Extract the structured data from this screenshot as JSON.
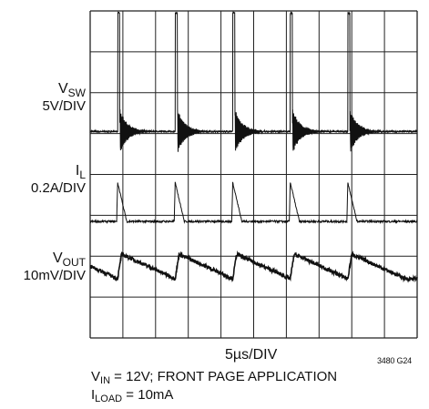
{
  "chart_data": {
    "type": "line",
    "grid": true,
    "divisions": {
      "x": 10,
      "y": 8
    },
    "xlabel": "5µs/DIV",
    "figure_id": "3480 G24",
    "time_per_div_us": 5,
    "switching_period_us": 8.8,
    "series": [
      {
        "name_main": "V",
        "name_sub": "SW",
        "scale": "5V/DIV",
        "waveform": "switch-node pulses with decaying ringing",
        "pulse_times_us": [
          4.2,
          13.0,
          21.8,
          30.6,
          39.4
        ],
        "baseline_div": 5.05,
        "pulse_peak_div": 7.95,
        "ring_amplitude_div": 0.55
      },
      {
        "name_main": "I",
        "name_sub": "L",
        "scale": "0.2A/DIV",
        "waveform": "inductor current spikes",
        "spike_times_us": [
          4.2,
          13.0,
          21.8,
          30.6,
          39.4
        ],
        "baseline_div": 2.85,
        "spike_peak_div": 3.8
      },
      {
        "name_main": "V",
        "name_sub": "OUT",
        "scale": "10mV/DIV",
        "waveform": "sawtooth ripple",
        "step_times_us": [
          4.2,
          13.0,
          21.8,
          30.6,
          39.4
        ],
        "ripple_low_div": 1.45,
        "ripple_high_div": 2.05
      }
    ]
  },
  "caption": {
    "line1_main": "V",
    "line1_sub": "IN",
    "line1_rest": " = 12V; FRONT PAGE APPLICATION",
    "line2_main": "I",
    "line2_sub": "LOAD",
    "line2_rest": " = 10mA"
  }
}
